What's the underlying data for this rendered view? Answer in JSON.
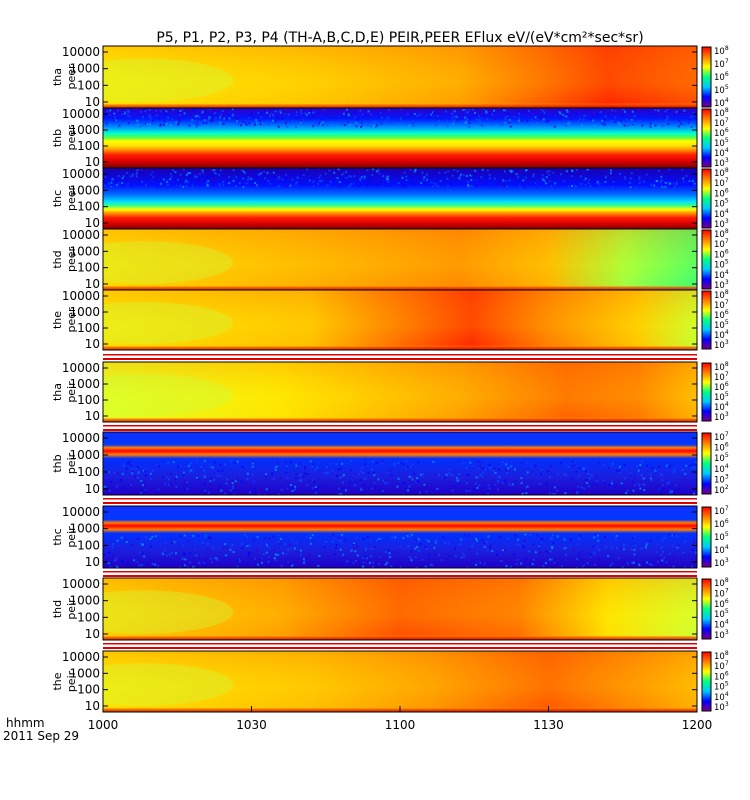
{
  "chart_data": {
    "type": "heatmap",
    "title": "P5, P1, P2, P3, P4 (TH-A,B,C,D,E) PEIR,PEER EFlux eV/(eV*cm²*sec*sr)",
    "x_ticks": [
      "1000",
      "1030",
      "1100",
      "1130",
      "1200"
    ],
    "x_label_lines": [
      "hhmm",
      "2011 Sep 29"
    ],
    "y_scale": "log",
    "colormap": [
      "#7a008a",
      "#0000ff",
      "#00c8ff",
      "#00ff80",
      "#ffff00",
      "#ff8000",
      "#ff0000"
    ],
    "panels": [
      {
        "probe": "tha",
        "species": "peer",
        "y_ticks": [
          "10000",
          "1000",
          "100",
          "10"
        ],
        "cbar_exponents": [
          "8",
          "7",
          "6",
          "5",
          "4"
        ],
        "cbar_top_tick": "8"
      },
      {
        "probe": "thb",
        "species": "peer",
        "y_ticks": [
          "10000",
          "1000",
          "100",
          "10"
        ],
        "cbar_exponents": [
          "8",
          "7",
          "6",
          "5",
          "4",
          "3"
        ]
      },
      {
        "probe": "thc",
        "species": "peer",
        "y_ticks": [
          "10000",
          "1000",
          "100",
          "10"
        ],
        "cbar_exponents": [
          "8",
          "7",
          "6",
          "5",
          "4",
          "3"
        ]
      },
      {
        "probe": "thd",
        "species": "peer",
        "y_ticks": [
          "10000",
          "1000",
          "100",
          "10"
        ],
        "cbar_exponents": [
          "8",
          "7",
          "6",
          "5",
          "4",
          "3"
        ]
      },
      {
        "probe": "the",
        "species": "peer",
        "y_ticks": [
          "10000",
          "1000",
          "100",
          "10"
        ],
        "cbar_exponents": [
          "8",
          "7",
          "6",
          "5",
          "4",
          "3"
        ]
      },
      {
        "probe": "tha",
        "species": "peir",
        "y_ticks": [
          "10000",
          "1000",
          "100",
          "10"
        ],
        "cbar_exponents": [
          "8",
          "7",
          "6",
          "5",
          "4",
          "3"
        ]
      },
      {
        "probe": "thb",
        "species": "peir",
        "y_ticks": [
          "10000",
          "1000",
          "100",
          "10"
        ],
        "cbar_exponents": [
          "7",
          "6",
          "5",
          "4",
          "3",
          "2"
        ]
      },
      {
        "probe": "thc",
        "species": "peir",
        "y_ticks": [
          "10000",
          "1000",
          "100",
          "10"
        ],
        "cbar_exponents": [
          "7",
          "6",
          "5",
          "4",
          "3"
        ]
      },
      {
        "probe": "thd",
        "species": "peir",
        "y_ticks": [
          "10000",
          "1000",
          "100",
          "10"
        ],
        "cbar_exponents": [
          "8",
          "7",
          "6",
          "5",
          "4",
          "3"
        ]
      },
      {
        "probe": "the",
        "species": "peir",
        "y_ticks": [
          "10000",
          "1000",
          "100",
          "10"
        ],
        "cbar_exponents": [
          "8",
          "7",
          "6",
          "5",
          "4",
          "3"
        ]
      }
    ]
  }
}
